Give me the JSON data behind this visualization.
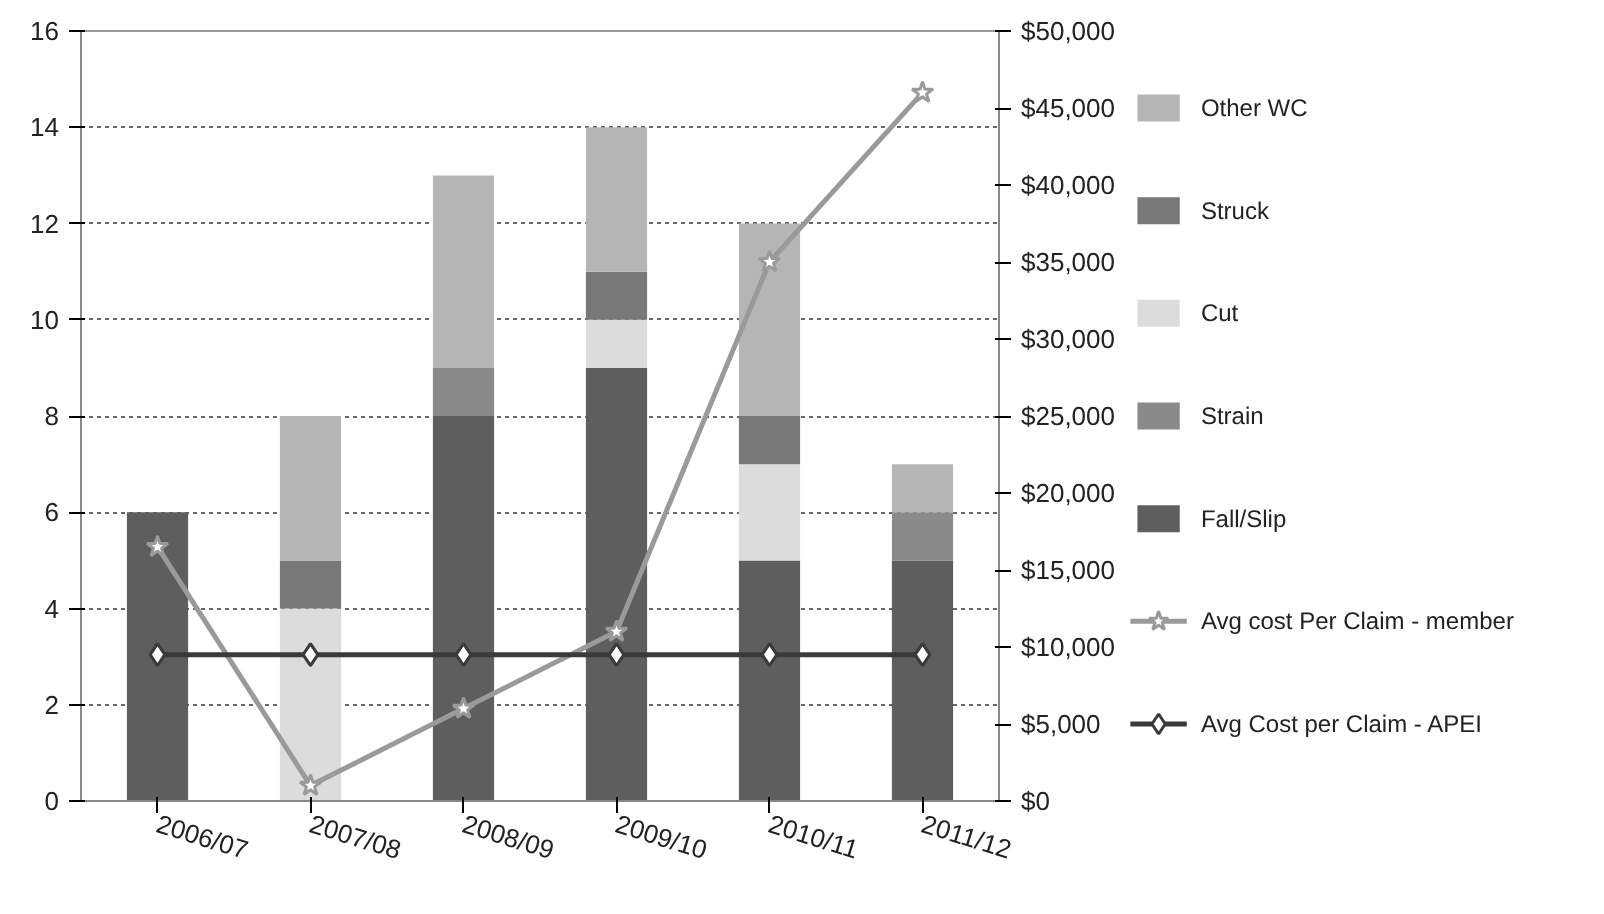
{
  "chart_data": {
    "type": "bar",
    "stacked": true,
    "categories": [
      "2006/07",
      "2007/08",
      "2008/09",
      "2009/10",
      "2010/11",
      "2011/12"
    ],
    "series": [
      {
        "name": "Fall/Slip",
        "color": "#5e5e5e",
        "values": [
          6,
          0,
          8,
          9,
          5,
          5
        ]
      },
      {
        "name": "Strain",
        "color": "#8a8a8a",
        "values": [
          0,
          0,
          1,
          0,
          0,
          1
        ]
      },
      {
        "name": "Cut",
        "color": "#dcdcdc",
        "values": [
          0,
          4,
          0,
          1,
          2,
          0
        ]
      },
      {
        "name": "Struck",
        "color": "#787878",
        "values": [
          0,
          1,
          0,
          1,
          1,
          0
        ]
      },
      {
        "name": "Other WC",
        "color": "#b5b5b5",
        "values": [
          0,
          3,
          4,
          3,
          4,
          1
        ]
      },
      {
        "name": "Avg cost Per Claim - member",
        "type": "line",
        "axis": "y2",
        "marker": "star",
        "color": "#9a9a9a",
        "values": [
          16500,
          1000,
          6000,
          11000,
          35000,
          46000
        ]
      },
      {
        "name": "Avg Cost per Claim - APEI",
        "type": "line",
        "axis": "y2",
        "marker": "diamond",
        "color": "#3a3a3a",
        "values": [
          9500,
          9500,
          9500,
          9500,
          9500,
          9500
        ]
      }
    ],
    "ylim": [
      0,
      16
    ],
    "yticks": [
      0,
      2,
      4,
      6,
      8,
      10,
      12,
      14,
      16
    ],
    "y2lim": [
      0,
      50000
    ],
    "y2ticks": [
      {
        "value": 0,
        "label": "$0"
      },
      {
        "value": 5000,
        "label": "$5,000"
      },
      {
        "value": 10000,
        "label": "$10,000"
      },
      {
        "value": 15000,
        "label": "$15,000"
      },
      {
        "value": 20000,
        "label": "$20,000"
      },
      {
        "value": 25000,
        "label": "$25,000"
      },
      {
        "value": 30000,
        "label": "$30,000"
      },
      {
        "value": 35000,
        "label": "$35,000"
      },
      {
        "value": 40000,
        "label": "$40,000"
      },
      {
        "value": 45000,
        "label": "$45,000"
      },
      {
        "value": 50000,
        "label": "$50,000"
      }
    ],
    "grid": "y",
    "legend": "right"
  }
}
